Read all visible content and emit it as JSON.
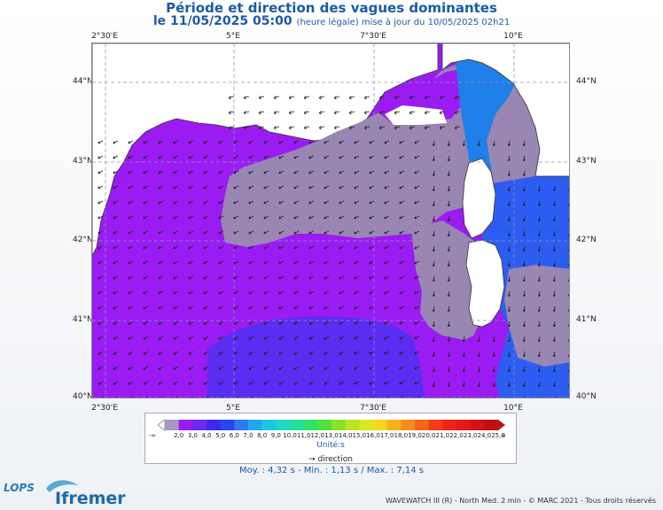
{
  "header": {
    "title": "Période et direction des vagues dominantes",
    "subtitle_main": "le 11/05/2025 05:00",
    "subtitle_note": "(heure légale) mise à jour du 10/05/2025 02h21"
  },
  "map": {
    "lon_ticks": [
      "2°30'E",
      "5°E",
      "7°30'E",
      "10°E"
    ],
    "lat_ticks": [
      "44°N",
      "43°N",
      "42°N",
      "41°N",
      "40°N"
    ],
    "colors": {
      "land": "#ffffff",
      "grey_purple": "#9a86b2",
      "violet": "#9a1cf2",
      "blue_violet": "#5b2cf2",
      "blue": "#2c5df0",
      "blue_light": "#1f7fe8"
    }
  },
  "legend": {
    "min_label": "-∞",
    "max_label": "∞",
    "labels": [
      "2,0",
      "3,0",
      "4,0",
      "5,0",
      "6,0",
      "7,0",
      "8,0",
      "9,0",
      "10,0",
      "11,0",
      "12,0",
      "13,0",
      "14,0",
      "15,0",
      "16,0",
      "17,0",
      "18,0",
      "19,0",
      "20,0",
      "21,0",
      "22,0",
      "23,0",
      "24,0",
      "25,0"
    ],
    "colors": [
      "#aa96be",
      "#9b1cf2",
      "#6a2cf2",
      "#3a2af2",
      "#2a46f2",
      "#2a7af2",
      "#23a8f0",
      "#1ec6e6",
      "#20d8c8",
      "#22e098",
      "#2ee266",
      "#50e23a",
      "#86e42a",
      "#b8e624",
      "#dde622",
      "#f3d81e",
      "#f6b21c",
      "#f68c1a",
      "#f4661a",
      "#f23e18",
      "#ee2418",
      "#e41a16",
      "#d41414",
      "#c01010"
    ],
    "unit": "Unité:s",
    "direction_label": "direction"
  },
  "stats": {
    "text": "Moy. : 4,32 s  -  Min. : 1,13 s / Max. : 7,14 s"
  },
  "footer": {
    "credit": "WAVEWATCH III (R) - North Med. 2 min - © MARC 2021 - Tous droits réservés",
    "logo_lops": "LOPS",
    "logo_ifremer": "Ifremer"
  }
}
